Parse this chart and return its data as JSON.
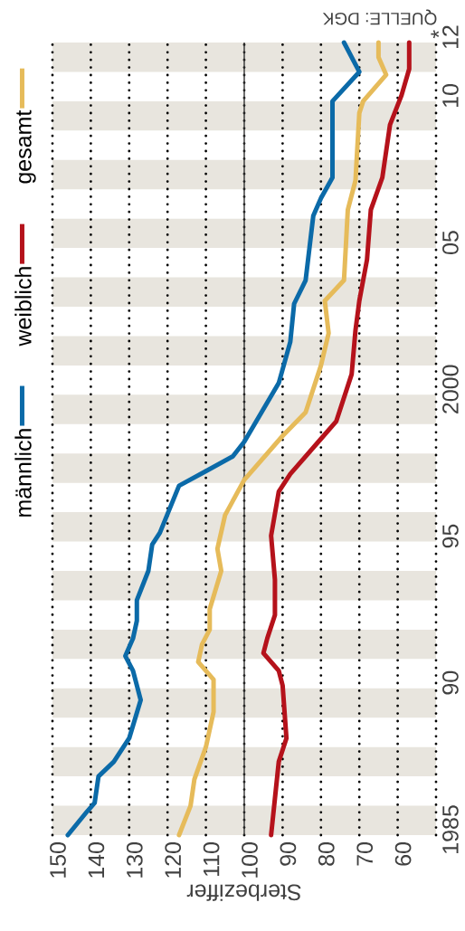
{
  "chart_data": {
    "type": "line",
    "xlabel": "Sterbeziffer",
    "xlim": [
      150,
      50
    ],
    "ylim": [
      1985,
      2012
    ],
    "xticks": [
      150,
      140,
      130,
      120,
      110,
      100,
      90,
      80,
      70,
      60,
      {
        "value": 50,
        "label": null
      }
    ],
    "yticks": [
      1985,
      {
        "value": 1990,
        "label": "90"
      },
      {
        "value": 1995,
        "label": "95"
      },
      2000,
      {
        "value": 2005,
        "label": "05"
      },
      {
        "value": 2010,
        "label": "10"
      },
      {
        "value": 2012,
        "label": "12"
      }
    ],
    "grid": "x",
    "legend": "left",
    "line_style": "solid",
    "ref_lines": [
      {
        "axis": "x",
        "value": 100,
        "color": "#333333"
      }
    ],
    "bands": [
      {
        "axis": "y",
        "from": 1985,
        "to": 1986,
        "color": "#e8e5de"
      },
      {
        "axis": "y",
        "from": 1987,
        "to": 1988,
        "color": "#e8e5de"
      },
      {
        "axis": "y",
        "from": 1989,
        "to": 1990,
        "color": "#e8e5de"
      },
      {
        "axis": "y",
        "from": 1991,
        "to": 1992,
        "color": "#e8e5de"
      },
      {
        "axis": "y",
        "from": 1993,
        "to": 1994,
        "color": "#e8e5de"
      },
      {
        "axis": "y",
        "from": 1995,
        "to": 1996,
        "color": "#e8e5de"
      },
      {
        "axis": "y",
        "from": 1997,
        "to": 1998,
        "color": "#e8e5de"
      },
      {
        "axis": "y",
        "from": 1999,
        "to": 2000,
        "color": "#e8e5de"
      },
      {
        "axis": "y",
        "from": 2001,
        "to": 2002,
        "color": "#e8e5de"
      },
      {
        "axis": "y",
        "from": 2003,
        "to": 2004,
        "color": "#e8e5de"
      },
      {
        "axis": "y",
        "from": 2005,
        "to": 2006,
        "color": "#e8e5de"
      },
      {
        "axis": "y",
        "from": 2007,
        "to": 2008,
        "color": "#e8e5de"
      },
      {
        "axis": "y",
        "from": 2009,
        "to": 2010,
        "color": "#e8e5de"
      },
      {
        "axis": "y",
        "from": 2011,
        "to": 2012,
        "color": "#e8e5de"
      }
    ],
    "annotations": [
      "*",
      "QUELLE: DGK"
    ],
    "series": [
      {
        "name": "männlich",
        "color": "#0b6aa8",
        "values": [
          1985,
          1985.8,
          1986.1,
          1987,
          1987.5,
          1988.3,
          1989.6,
          1990.6,
          1991.1,
          1991.7,
          1992.3,
          1993,
          1994,
          1994.9,
          1995.3,
          1996.9,
          1997.4,
          1997.9,
          1998.4,
          2000.4,
          2001.8,
          2003.1,
          2003.9,
          2006.1,
          2006.7,
          2007.4,
          2010,
          2011,
          2012
        ],
        "x": [
          146,
          141,
          139,
          138,
          134,
          130,
          127,
          129,
          131,
          129,
          128,
          128,
          125,
          124,
          122,
          117,
          110,
          103,
          100,
          91,
          88,
          87,
          84,
          82,
          80,
          77,
          77,
          70,
          74
        ]
      },
      {
        "name": "weiblich",
        "color": "#b5121b",
        "values": [
          1985,
          1987.5,
          1988.3,
          1990.1,
          1990.6,
          1991.2,
          1991.7,
          1992.5,
          1993.7,
          1995.2,
          1996.7,
          1997.3,
          1998.5,
          1999.1,
          2000.7,
          2002.2,
          2003.2,
          2004.6,
          2006.3,
          2007.4,
          2009.2,
          2010.2,
          2011.1,
          2012
        ],
        "x": [
          93,
          91,
          89,
          90,
          91,
          95,
          94,
          92,
          92,
          93,
          91,
          88,
          80,
          76,
          72,
          71,
          70,
          68,
          67,
          64,
          62,
          59,
          57,
          57
        ]
      },
      {
        "name": "gesamt",
        "color": "#e6bb5a",
        "values": [
          1985,
          1986,
          1986.9,
          1988,
          1989.2,
          1990.3,
          1990.6,
          1990.9,
          1991.5,
          1992,
          1992.7,
          1994,
          1994.75,
          1995.9,
          1997.1,
          1998.6,
          1999.4,
          2001,
          2002.1,
          2003.2,
          2003.9,
          2006.3,
          2007.3,
          2009.6,
          2010,
          2010.9,
          2011.5,
          2012
        ],
        "x": [
          117,
          114,
          113,
          110,
          108,
          108,
          110,
          112,
          111,
          109,
          109,
          106,
          107,
          105,
          100,
          90,
          84,
          80,
          78,
          79,
          74,
          73,
          71,
          70,
          69,
          63,
          65,
          65
        ]
      }
    ]
  }
}
